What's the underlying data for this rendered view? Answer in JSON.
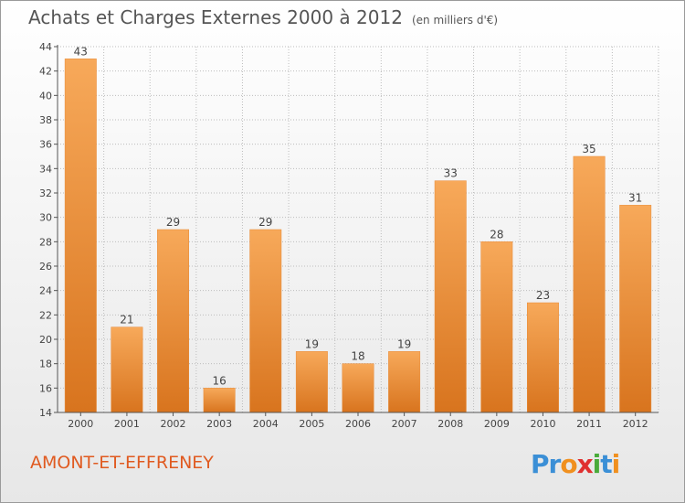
{
  "title": "Achats et Charges Externes 2000 à 2012",
  "unit": "(en milliers d'€)",
  "commune": "AMONT-ET-EFFRENEY",
  "logo": {
    "text": "Proxiti",
    "letters": [
      {
        "char": "P",
        "color": "#3b8fd6"
      },
      {
        "char": "r",
        "color": "#3b8fd6"
      },
      {
        "char": "o",
        "color": "#f0901f"
      },
      {
        "char": "x",
        "color": "#e03030"
      },
      {
        "char": "i",
        "color": "#4aab3a"
      },
      {
        "char": "t",
        "color": "#3b8fd6"
      },
      {
        "char": "i",
        "color": "#f0901f"
      }
    ]
  },
  "colors": {
    "bar_light": "#f7a95a",
    "bar_dark": "#d8741e",
    "grid": "#bdbdbd",
    "axis": "#555555"
  },
  "chart_data": {
    "type": "bar",
    "categories": [
      "2000",
      "2001",
      "2002",
      "2003",
      "2004",
      "2005",
      "2006",
      "2007",
      "2008",
      "2009",
      "2010",
      "2011",
      "2012"
    ],
    "values": [
      43,
      21,
      29,
      16,
      29,
      19,
      18,
      19,
      33,
      28,
      23,
      35,
      31
    ],
    "ylim": [
      14,
      44
    ],
    "yticks": [
      14,
      16,
      18,
      20,
      22,
      24,
      26,
      28,
      30,
      32,
      34,
      36,
      38,
      40,
      42,
      44
    ],
    "grid": true
  }
}
